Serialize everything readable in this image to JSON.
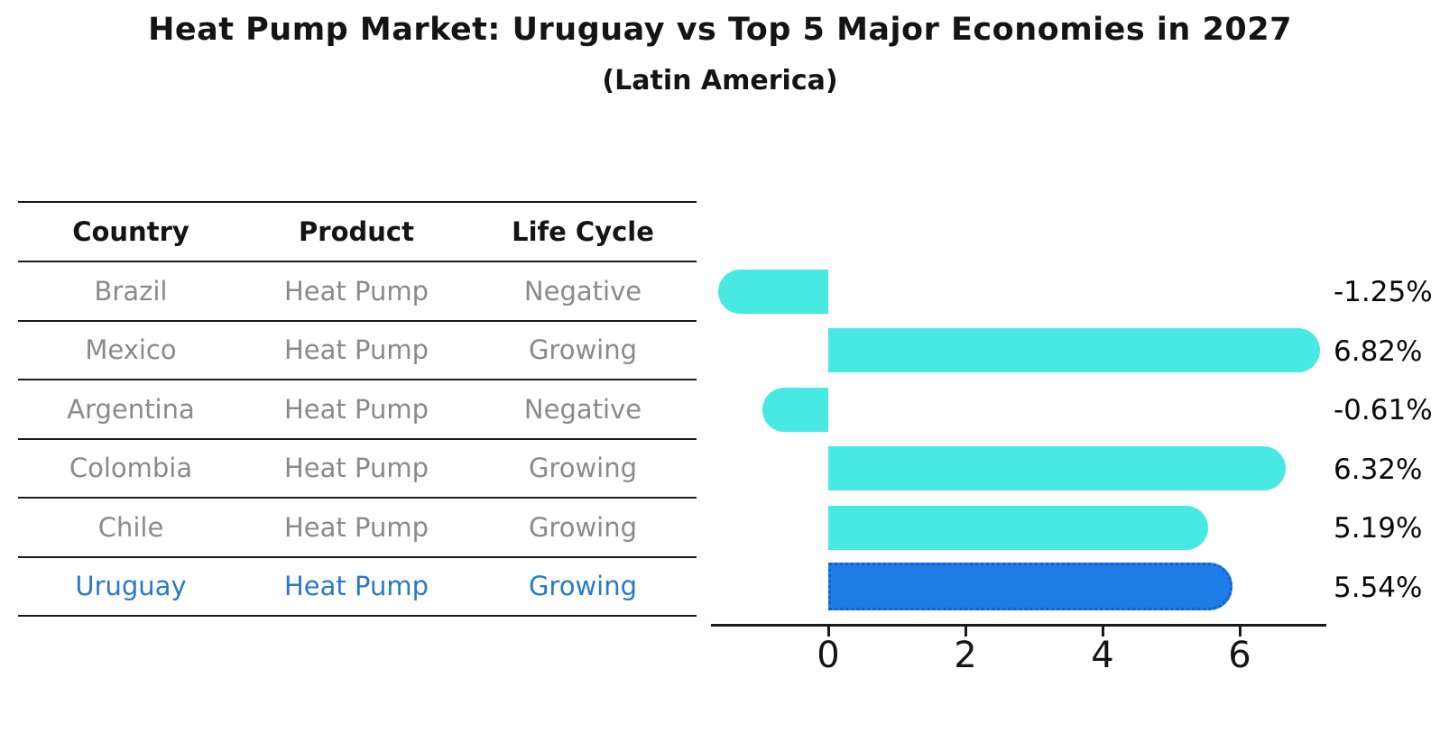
{
  "title": "Heat Pump Market: Uruguay vs Top 5 Major Economies in 2027",
  "subtitle": "(Latin America)",
  "table": {
    "columns": [
      "Country",
      "Product",
      "Life Cycle"
    ],
    "rows": [
      {
        "country": "Brazil",
        "product": "Heat Pump",
        "life_cycle": "Negative",
        "highlight": false
      },
      {
        "country": "Mexico",
        "product": "Heat Pump",
        "life_cycle": "Growing",
        "highlight": false
      },
      {
        "country": "Argentina",
        "product": "Heat Pump",
        "life_cycle": "Negative",
        "highlight": false
      },
      {
        "country": "Colombia",
        "product": "Heat Pump",
        "life_cycle": "Growing",
        "highlight": false
      },
      {
        "country": "Chile",
        "product": "Heat Pump",
        "life_cycle": "Growing",
        "highlight": false
      },
      {
        "country": "Uruguay",
        "product": "Heat Pump",
        "life_cycle": "Growing",
        "highlight": true
      }
    ]
  },
  "chart_data": {
    "type": "bar",
    "orientation": "horizontal",
    "title": "Heat Pump Market: Uruguay vs Top 5 Major Economies in 2027",
    "subtitle": "(Latin America)",
    "categories": [
      "Brazil",
      "Mexico",
      "Argentina",
      "Colombia",
      "Chile",
      "Uruguay"
    ],
    "values": [
      -1.25,
      6.82,
      -0.61,
      6.32,
      5.19,
      5.54
    ],
    "value_labels": [
      "-1.25%",
      "6.82%",
      "-0.61%",
      "6.32%",
      "5.19%",
      "5.54%"
    ],
    "unit": "percent",
    "highlight_category": "Uruguay",
    "x_ticks": [
      0,
      2,
      4,
      6
    ],
    "xlim": [
      -1.7,
      7.3
    ],
    "grid": false,
    "legend": false
  },
  "colors": {
    "bar_default": "#47e9e2",
    "bar_highlight": "#1e7ce6",
    "bar_highlight_border": "#0f5fd0",
    "highlight_text": "#2a78cc",
    "row_text": "#8a8a8a",
    "header_text": "#141414",
    "axis": "#1a1a1a"
  }
}
